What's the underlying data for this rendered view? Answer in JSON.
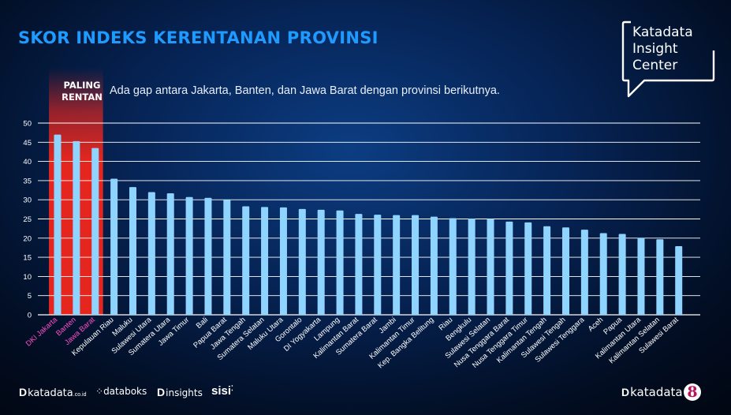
{
  "title": "SKOR INDEKS KERENTANAN PROVINSI",
  "subtitle": "Ada gap antara Jakarta, Banten, dan Jawa Barat dengan provinsi berikutnya.",
  "highlight_label": [
    "PALING",
    "RENTAN"
  ],
  "logo": {
    "lines": [
      "Katadata",
      "Insight",
      "Center"
    ]
  },
  "footer": {
    "katadata": "katadata",
    "katadata_suffix": ".co.id",
    "databoks": "databoks",
    "dinsights": "insights",
    "sisi": "sisi",
    "katadata_right": "katadata",
    "eight": "8"
  },
  "colors": {
    "title": "#1f9bff",
    "bar": "#8fd4ff",
    "highlight_band": "#e5261f",
    "highlight_label": "#ff4fc8",
    "label": "#ffffff"
  },
  "chart_data": {
    "type": "bar",
    "ylim": [
      0,
      50
    ],
    "yticks": [
      0,
      5,
      10,
      15,
      20,
      25,
      30,
      35,
      40,
      45,
      50
    ],
    "grid": true,
    "highlight_count": 3,
    "categories": [
      "DKI Jakarta",
      "Banten",
      "Jawa Barat",
      "Kepulauan Riau",
      "Maluku",
      "Sulawesi Utara",
      "Sumatera Utara",
      "Jawa Timur",
      "Bali",
      "Papua Barat",
      "Jawa Tengah",
      "Sumatera Selatan",
      "Maluku Utara",
      "Gorontalo",
      "DI Yogyakarta",
      "Lampung",
      "Kalimantan Barat",
      "Sumatera Barat",
      "Jambi",
      "Kalimantan Timur",
      "Kep. Bangka Belitung",
      "Riau",
      "Bengkulu",
      "Sulawesi Selatan",
      "Nusa Tenggara Barat",
      "Nusa Tenggara Timur",
      "Kalimantan Tengah",
      "Sulawesi Tengah",
      "Sulawesi Tenggara",
      "Aceh",
      "Papua",
      "Kalimantan Utara",
      "Kalimantan Selatan",
      "Sulawesi Barat"
    ],
    "values": [
      47,
      45.3,
      43.5,
      35.5,
      33.3,
      32,
      31.7,
      30.7,
      30.5,
      30,
      28.3,
      28.1,
      28,
      27.6,
      27.4,
      27.2,
      26.3,
      26.1,
      26,
      26,
      25.6,
      25.2,
      25.1,
      25,
      24.3,
      24.1,
      23.1,
      22.8,
      22.2,
      21.3,
      21.1,
      20.1,
      19.7,
      17.9
    ]
  }
}
